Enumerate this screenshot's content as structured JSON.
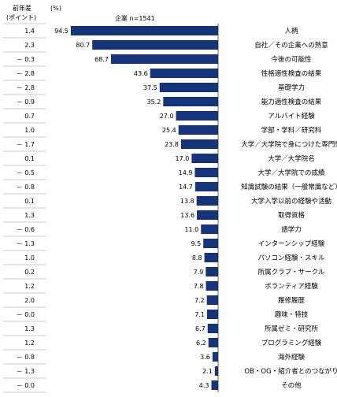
{
  "header": {
    "diff_title": "前年差",
    "diff_unit": "(ポイント)",
    "percent_unit": "(%)",
    "series_label": "企業  n=1541"
  },
  "chart_data": {
    "type": "bar",
    "orientation": "horizontal",
    "bar_color": "#17337a",
    "categories": [
      "人柄",
      "自社／その企業への熱意",
      "今後の可能性",
      "性格適性検査の結果",
      "基礎学力",
      "能力適性検査の結果",
      "アルバイト経験",
      "学部・学科／研究科",
      "大学／大学院で身につけた専門性",
      "大学／大学院名",
      "大学／大学院での成績",
      "知識試験の結果（一般常識など）",
      "大学入学以前の経験や活動",
      "取得資格",
      "語学力",
      "インターンシップ経験",
      "パソコン経験・スキル",
      "所属クラブ・サークル",
      "ボランティア経験",
      "履修履歴",
      "趣味・特技",
      "所属ゼミ・研究所",
      "プログラミング経験",
      "海外経験",
      "OB・OG・紹介者とのつながり",
      "その他"
    ],
    "series": [
      {
        "name": "企業  n=1541",
        "values": [
          94.5,
          80.7,
          68.7,
          43.6,
          37.5,
          35.2,
          27.0,
          25.4,
          23.8,
          17.0,
          14.9,
          14.7,
          13.8,
          13.6,
          11.0,
          9.5,
          8.8,
          7.9,
          7.8,
          7.2,
          7.1,
          6.7,
          6.2,
          3.6,
          2.1,
          4.3
        ],
        "value_labels": [
          "94.5",
          "80.7",
          "68.7",
          "43.6",
          "37.5",
          "35.2",
          "27.0",
          "25.4",
          "23.8",
          "17.0",
          "14.9",
          "14.7",
          "13.8",
          "13.6",
          "11.0",
          "9.5",
          "8.8",
          "7.9",
          "7.8",
          "7.2",
          "7.1",
          "6.7",
          "6.2",
          "3.6",
          "2.1",
          "4.3"
        ]
      }
    ],
    "diff_labels": [
      "1.4",
      "2.3",
      "－ 0.3",
      "－ 2.8",
      "－ 2.8",
      "－ 0.9",
      "0.7",
      "1.0",
      "－ 1.7",
      "0.1",
      "－ 0.5",
      "－ 0.8",
      "0.1",
      "1.3",
      "－ 0.6",
      "－ 1.3",
      "1.0",
      "0.2",
      "1.2",
      "2.0",
      "－ 0.0",
      "1.3",
      "1.2",
      "－ 0.8",
      "－ 1.3",
      "－ 0.0"
    ],
    "xlim": [
      0,
      100
    ]
  }
}
